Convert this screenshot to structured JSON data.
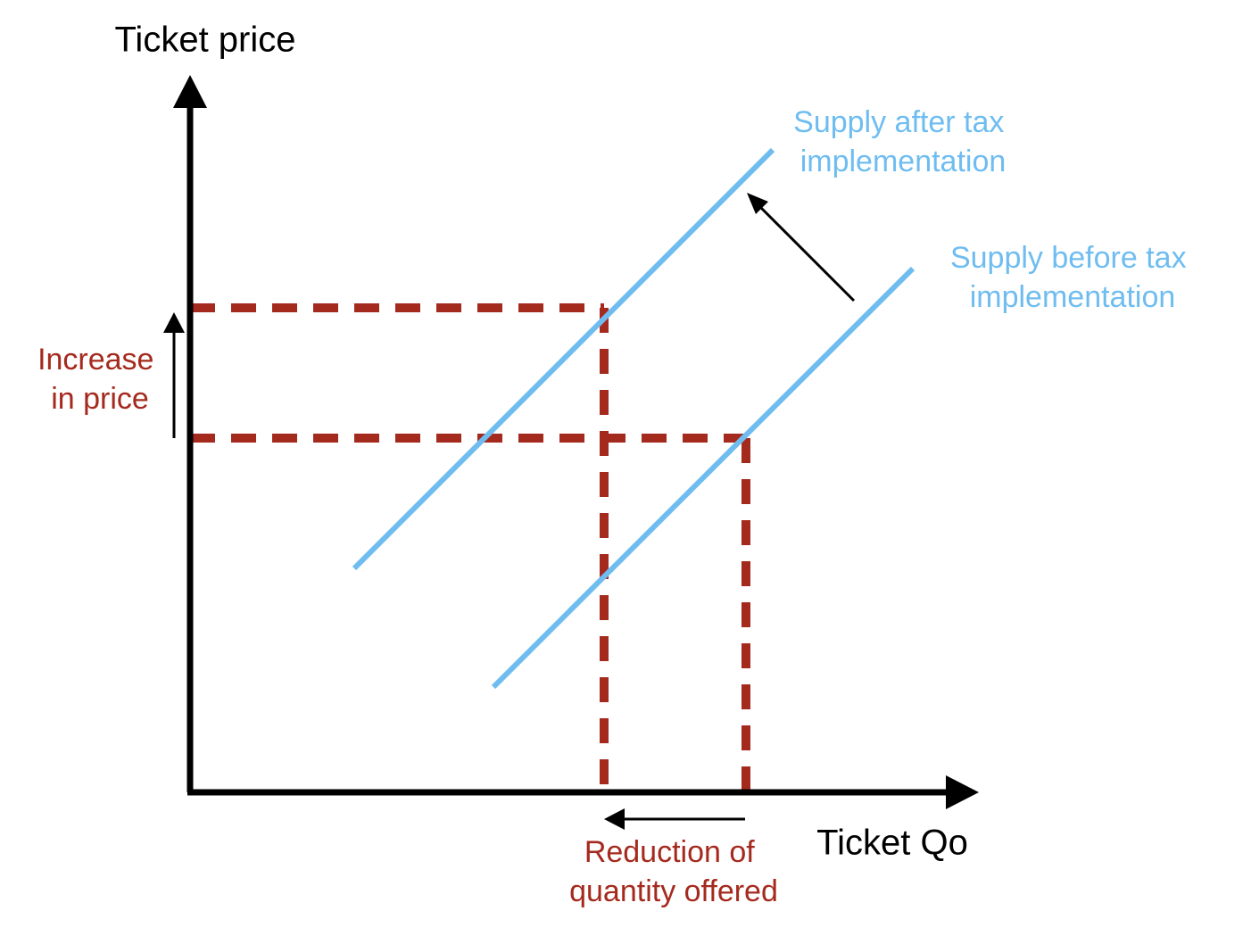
{
  "axes": {
    "y_label": "Ticket price",
    "x_label": "Ticket Qo"
  },
  "curves": [
    {
      "label": [
        "Supply after tax",
        "implementation"
      ]
    },
    {
      "label": [
        "Supply before tax",
        "implementation"
      ]
    }
  ],
  "annotations": [
    {
      "label": [
        "Increase",
        "in price"
      ]
    },
    {
      "label": [
        "Reduction of",
        "quantity offered"
      ]
    }
  ]
}
